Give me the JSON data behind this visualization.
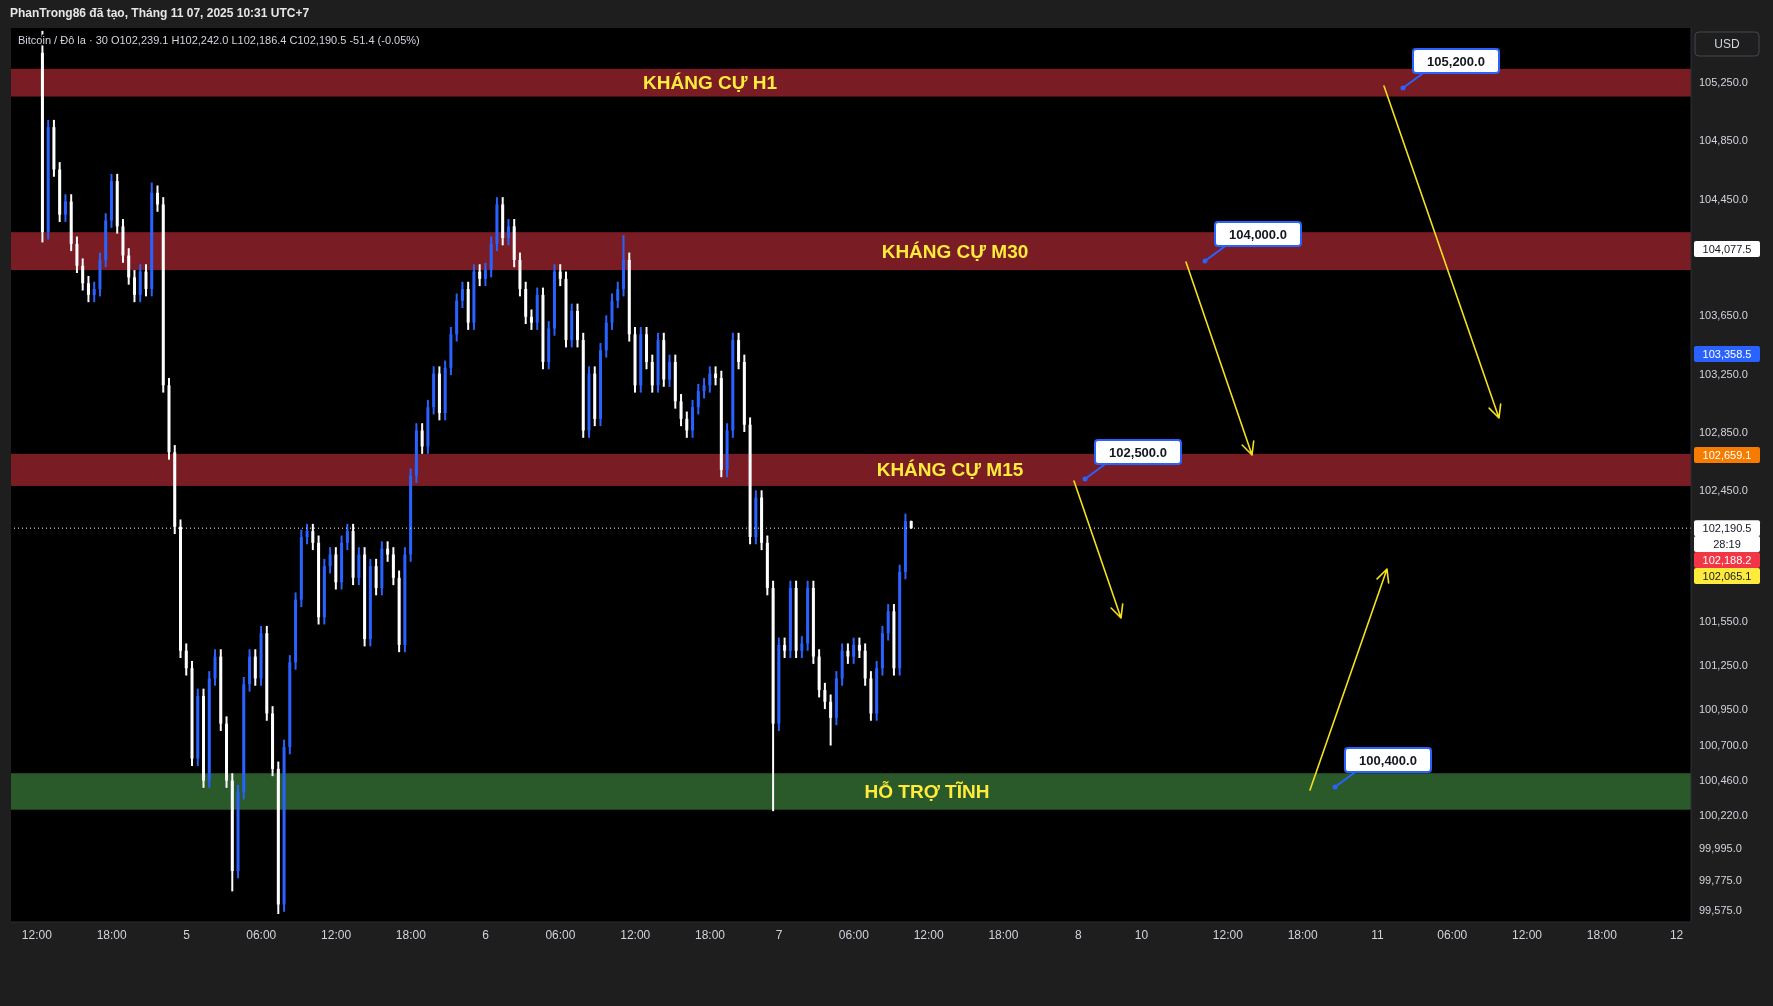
{
  "chart_data": {
    "type": "candlestick",
    "title": "PhanTrong86 đã tạo, Tháng 11 07, 2025 10:31 UTC+7",
    "subtitle": "Bitcoin / Đô la · 30   O102,239.1  H102,242.0  L102,186.4  C102,190.5  -51.4 (-0.05%)",
    "categories": [
      null,
      null,
      null,
      null,
      "12:00",
      null,
      null,
      null,
      null,
      null,
      null,
      null,
      null,
      null,
      null,
      null,
      null,
      "18:00",
      null,
      null,
      null,
      null,
      null,
      null,
      null,
      null,
      null,
      null,
      null,
      null,
      "5",
      null,
      null,
      null,
      null,
      null,
      null,
      null,
      null,
      null,
      null,
      null,
      null,
      "06:00",
      null,
      null,
      null,
      null,
      null,
      null,
      null,
      null,
      null,
      null,
      null,
      null,
      "12:00",
      null,
      null,
      null,
      null,
      null,
      null,
      null,
      null,
      null,
      null,
      null,
      null,
      "18:00",
      null,
      null,
      null,
      null,
      null,
      null,
      null,
      null,
      null,
      null,
      null,
      null,
      "6",
      null,
      null,
      null,
      null,
      null,
      null,
      null,
      null,
      null,
      null,
      null,
      null,
      "06:00",
      null,
      null,
      null,
      null,
      null,
      null,
      null,
      null,
      null,
      null,
      null,
      null,
      "12:00",
      null,
      null,
      null,
      null,
      null,
      null,
      null,
      null,
      null,
      null,
      null,
      null,
      "18:00",
      null,
      null,
      null,
      null,
      null,
      null,
      null,
      null,
      null,
      null,
      null,
      "7",
      null,
      null,
      null,
      null,
      null,
      null,
      null,
      null,
      null,
      null,
      null,
      null,
      "06:00",
      null,
      null,
      null,
      null,
      null,
      null,
      null,
      null,
      null,
      null,
      null,
      null,
      "12:00",
      null,
      null,
      null,
      null,
      null,
      null,
      null,
      null,
      null,
      null,
      null,
      null,
      "18:00",
      null,
      null,
      null,
      null,
      null,
      null,
      null,
      null,
      null,
      null,
      null,
      null,
      "8",
      null,
      null,
      null,
      null,
      null,
      null,
      null,
      null,
      null,
      null,
      "10",
      null,
      null,
      null,
      null,
      null,
      null,
      null,
      null,
      null,
      null,
      null,
      null,
      null,
      null,
      "12:00",
      null,
      null,
      null,
      null,
      null,
      null,
      null,
      null,
      null,
      null,
      null,
      null,
      "18:00",
      null,
      null,
      null,
      null,
      null,
      null,
      null,
      null,
      null,
      null,
      null,
      null,
      "11",
      null,
      null,
      null,
      null,
      null,
      null,
      null,
      null,
      null,
      null,
      null,
      null,
      "06:00",
      null,
      null,
      null,
      null,
      null,
      null,
      null,
      null,
      null,
      null,
      null,
      null,
      "12:00",
      null,
      null,
      null,
      null,
      null,
      null,
      null,
      null,
      null,
      null,
      null,
      null,
      "18:00",
      null,
      null,
      null,
      null,
      null,
      null,
      null,
      null,
      null,
      null,
      null,
      null,
      "12",
      null,
      null
    ],
    "ohlc": [
      null,
      null,
      null,
      null,
      null,
      [
        105450,
        105600,
        104150,
        104220
      ],
      [
        104220,
        104990,
        104170,
        104940
      ],
      [
        104940,
        104990,
        104600,
        104650
      ],
      [
        104650,
        104700,
        104290,
        104340
      ],
      [
        104340,
        104480,
        104290,
        104430
      ],
      [
        104430,
        104480,
        104090,
        104140
      ],
      [
        104140,
        104190,
        103940,
        103990
      ],
      [
        103990,
        104040,
        103820,
        103870
      ],
      [
        103870,
        103920,
        103740,
        103790
      ],
      [
        103790,
        103880,
        103740,
        103830
      ],
      [
        103830,
        104080,
        103780,
        104030
      ],
      [
        104030,
        104350,
        103980,
        104300
      ],
      [
        104300,
        104620,
        104250,
        104570
      ],
      [
        104570,
        104620,
        104210,
        104260
      ],
      [
        104260,
        104310,
        104010,
        104060
      ],
      [
        104060,
        104110,
        103860,
        103910
      ],
      [
        103910,
        103960,
        103740,
        103790
      ],
      [
        103790,
        104000,
        103740,
        103950
      ],
      [
        103950,
        104000,
        103780,
        103830
      ],
      [
        103830,
        104560,
        103780,
        104490
      ],
      [
        104490,
        104540,
        104360,
        104410
      ],
      [
        104410,
        104460,
        103120,
        103170
      ],
      [
        103170,
        103220,
        102660,
        102710
      ],
      [
        102710,
        102760,
        102150,
        102200
      ],
      [
        102200,
        102250,
        101300,
        101350
      ],
      [
        101350,
        101400,
        101180,
        101230
      ],
      [
        101230,
        101280,
        100560,
        100610
      ],
      [
        100610,
        101090,
        100560,
        101040
      ],
      [
        101040,
        101090,
        100410,
        100460
      ],
      [
        100460,
        101210,
        100410,
        101160
      ],
      [
        101160,
        101360,
        101110,
        101310
      ],
      [
        101310,
        101360,
        100800,
        100850
      ],
      [
        100850,
        100900,
        100410,
        100460
      ],
      [
        100460,
        100510,
        99700,
        99840
      ],
      [
        99840,
        100430,
        99790,
        100380
      ],
      [
        100380,
        101170,
        100330,
        101120
      ],
      [
        101120,
        101360,
        101070,
        101310
      ],
      [
        101310,
        101360,
        101110,
        101160
      ],
      [
        101160,
        101520,
        101110,
        101470
      ],
      [
        101470,
        101520,
        100870,
        100920
      ],
      [
        100920,
        100970,
        100490,
        100540
      ],
      [
        100540,
        100590,
        99545,
        99610
      ],
      [
        99610,
        100740,
        99560,
        100690
      ],
      [
        100690,
        101320,
        100640,
        101270
      ],
      [
        101270,
        101750,
        101220,
        101700
      ],
      [
        101700,
        102180,
        101650,
        102130
      ],
      [
        102130,
        102220,
        102080,
        102170
      ],
      [
        102170,
        102220,
        102040,
        102090
      ],
      [
        102090,
        102140,
        101530,
        101580
      ],
      [
        101580,
        101980,
        101530,
        101930
      ],
      [
        101930,
        102060,
        101880,
        102010
      ],
      [
        102010,
        102060,
        101770,
        101820
      ],
      [
        101820,
        102140,
        101770,
        102090
      ],
      [
        102090,
        102220,
        102040,
        102170
      ],
      [
        102170,
        102220,
        101800,
        101850
      ],
      [
        101850,
        102060,
        101800,
        102010
      ],
      [
        102010,
        102060,
        101380,
        101430
      ],
      [
        101430,
        101980,
        101380,
        101930
      ],
      [
        101930,
        101980,
        101730,
        101780
      ],
      [
        101780,
        102100,
        101730,
        102050
      ],
      [
        102050,
        102100,
        101960,
        102010
      ],
      [
        102010,
        102060,
        101800,
        101850
      ],
      [
        101850,
        101900,
        101340,
        101390
      ],
      [
        101390,
        102060,
        101340,
        102010
      ],
      [
        102010,
        102600,
        101960,
        102550
      ],
      [
        102550,
        102910,
        102500,
        102860
      ],
      [
        102860,
        102910,
        102700,
        102750
      ],
      [
        102750,
        103070,
        102700,
        103020
      ],
      [
        103020,
        103300,
        102970,
        103250
      ],
      [
        103250,
        103300,
        102930,
        102980
      ],
      [
        102980,
        103340,
        102930,
        103290
      ],
      [
        103290,
        103570,
        103240,
        103520
      ],
      [
        103520,
        103800,
        103470,
        103750
      ],
      [
        103750,
        103880,
        103700,
        103830
      ],
      [
        103830,
        103880,
        103550,
        103600
      ],
      [
        103600,
        104000,
        103550,
        103950
      ],
      [
        103950,
        104000,
        103850,
        103900
      ],
      [
        103900,
        104010,
        103850,
        103960
      ],
      [
        103960,
        104190,
        103910,
        104140
      ],
      [
        104140,
        104460,
        104090,
        104410
      ],
      [
        104410,
        104460,
        104130,
        104180
      ],
      [
        104180,
        104310,
        104130,
        104260
      ],
      [
        104260,
        104310,
        103980,
        104030
      ],
      [
        104030,
        104080,
        103780,
        103830
      ],
      [
        103830,
        103880,
        103590,
        103640
      ],
      [
        103640,
        103690,
        103550,
        103600
      ],
      [
        103600,
        103840,
        103550,
        103790
      ],
      [
        103790,
        103840,
        103280,
        103330
      ],
      [
        103330,
        103610,
        103280,
        103560
      ],
      [
        103560,
        104000,
        103510,
        103950
      ],
      [
        103950,
        104000,
        103850,
        103900
      ],
      [
        103900,
        103950,
        103430,
        103480
      ],
      [
        103480,
        103730,
        103430,
        103680
      ],
      [
        103680,
        103730,
        103430,
        103480
      ],
      [
        103480,
        103530,
        102810,
        102860
      ],
      [
        102860,
        103300,
        102810,
        103250
      ],
      [
        103250,
        103300,
        102890,
        102940
      ],
      [
        102940,
        103460,
        102890,
        103410
      ],
      [
        103410,
        103650,
        103360,
        103600
      ],
      [
        103600,
        103800,
        103550,
        103750
      ],
      [
        103750,
        103880,
        103700,
        103830
      ],
      [
        103830,
        104200,
        103780,
        104030
      ],
      [
        104030,
        104080,
        103470,
        103520
      ],
      [
        103520,
        103570,
        103120,
        103170
      ],
      [
        103170,
        103570,
        103120,
        103520
      ],
      [
        103520,
        103570,
        103280,
        103330
      ],
      [
        103330,
        103380,
        103120,
        103170
      ],
      [
        103170,
        103530,
        103120,
        103480
      ],
      [
        103480,
        103530,
        103160,
        103210
      ],
      [
        103210,
        103380,
        103160,
        103330
      ],
      [
        103330,
        103380,
        103010,
        103060
      ],
      [
        103060,
        103110,
        102890,
        102940
      ],
      [
        102940,
        102990,
        102810,
        102860
      ],
      [
        102860,
        103070,
        102810,
        103020
      ],
      [
        103020,
        103180,
        102970,
        103130
      ],
      [
        103130,
        103220,
        103080,
        103170
      ],
      [
        103170,
        103300,
        103120,
        103250
      ],
      [
        103250,
        103300,
        103170,
        103220
      ],
      [
        103220,
        103270,
        102540,
        102590
      ],
      [
        102590,
        102910,
        102540,
        102860
      ],
      [
        102860,
        103530,
        102810,
        103480
      ],
      [
        103480,
        103530,
        103280,
        103330
      ],
      [
        103330,
        103380,
        102850,
        102900
      ],
      [
        102900,
        102950,
        102080,
        102130
      ],
      [
        102130,
        102450,
        102080,
        102400
      ],
      [
        102400,
        102450,
        102040,
        102090
      ],
      [
        102090,
        102140,
        101730,
        101780
      ],
      [
        101780,
        101830,
        100250,
        100850
      ],
      [
        100850,
        101440,
        100800,
        101390
      ],
      [
        101390,
        101440,
        101300,
        101350
      ],
      [
        101350,
        101830,
        101300,
        101780
      ],
      [
        101780,
        101830,
        101300,
        101350
      ],
      [
        101350,
        101450,
        101300,
        101400
      ],
      [
        101400,
        101830,
        101350,
        101780
      ],
      [
        101780,
        101830,
        101260,
        101310
      ],
      [
        101310,
        101360,
        101030,
        101080
      ],
      [
        101080,
        101130,
        100950,
        101000
      ],
      [
        101000,
        101050,
        100700,
        100890
      ],
      [
        100890,
        101210,
        100840,
        101160
      ],
      [
        101160,
        101400,
        101110,
        101350
      ],
      [
        101350,
        101400,
        101260,
        101310
      ],
      [
        101310,
        101440,
        101260,
        101390
      ],
      [
        101390,
        101440,
        101300,
        101350
      ],
      [
        101350,
        101400,
        101110,
        101160
      ],
      [
        101160,
        101210,
        100870,
        100920
      ],
      [
        100920,
        101280,
        100870,
        101230
      ],
      [
        101230,
        101520,
        101180,
        101470
      ],
      [
        101470,
        101670,
        101420,
        101620
      ],
      [
        101620,
        101670,
        101180,
        101230
      ],
      [
        101230,
        101940,
        101180,
        101890
      ],
      [
        101890,
        102290,
        101840,
        102239.1
      ],
      [
        102239.1,
        102242.0,
        102186.4,
        102190.5
      ],
      null,
      null,
      null,
      null,
      null,
      null,
      null,
      null,
      null,
      null,
      null,
      null,
      null,
      null,
      null,
      null,
      null,
      null,
      null,
      null,
      null,
      null,
      null,
      null,
      null,
      null,
      null,
      null,
      null,
      null,
      null,
      null,
      null,
      null,
      null,
      null,
      null,
      null,
      null,
      null,
      null,
      null,
      null,
      null,
      null,
      null,
      null,
      null,
      null,
      null,
      null,
      null,
      null,
      null,
      null,
      null,
      null,
      null,
      null,
      null,
      null,
      null,
      null,
      null,
      null,
      null,
      null,
      null,
      null,
      null,
      null,
      null,
      null,
      null,
      null,
      null,
      null,
      null,
      null,
      null,
      null,
      null,
      null,
      null,
      null,
      null,
      null,
      null,
      null,
      null,
      null,
      null,
      null,
      null,
      null,
      null,
      null,
      null,
      null,
      null,
      null,
      null,
      null,
      null,
      null,
      null,
      null,
      null,
      null,
      null,
      null,
      null,
      null,
      null,
      null,
      null,
      null,
      null,
      null,
      null,
      null,
      null,
      null,
      null,
      null,
      null,
      null,
      null,
      null,
      null,
      null,
      null,
      null,
      null,
      null
    ],
    "colors": [
      null,
      null,
      null,
      null,
      null,
      "#ffffff",
      "#2962ff",
      "#ffffff",
      "#ffffff",
      "#2962ff",
      "#ffffff",
      "#ffffff",
      "#ffffff",
      "#ffffff",
      "#2962ff",
      "#2962ff",
      "#2962ff",
      "#2962ff",
      "#ffffff",
      "#ffffff",
      "#ffffff",
      "#ffffff",
      "#2962ff",
      "#ffffff",
      "#2962ff",
      "#ffffff",
      "#ffffff",
      "#ffffff",
      "#ffffff",
      "#ffffff",
      "#ffffff",
      "#ffffff",
      "#2962ff",
      "#ffffff",
      "#2962ff",
      "#2962ff",
      "#ffffff",
      "#ffffff",
      "#ffffff",
      "#2962ff",
      "#2962ff",
      "#2962ff",
      "#ffffff",
      "#2962ff",
      "#ffffff",
      "#ffffff",
      "#ffffff",
      "#2962ff",
      "#2962ff",
      "#2962ff",
      "#2962ff",
      "#2962ff",
      "#ffffff",
      "#ffffff",
      "#2962ff",
      "#2962ff",
      "#ffffff",
      "#2962ff",
      "#2962ff",
      "#ffffff",
      "#2962ff",
      "#ffffff",
      "#2962ff",
      "#ffffff",
      "#2962ff",
      "#ffffff",
      "#ffffff",
      "#ffffff",
      "#2962ff",
      "#2962ff",
      "#2962ff",
      "#ffffff",
      "#2962ff",
      "#2962ff",
      "#ffffff",
      "#2962ff",
      "#2962ff",
      "#2962ff",
      "#2962ff",
      "#ffffff",
      "#2962ff",
      "#ffffff",
      "#2962ff",
      "#2962ff",
      "#2962ff",
      "#ffffff",
      "#2962ff",
      "#ffffff",
      "#ffffff",
      "#ffffff",
      "#ffffff",
      "#2962ff",
      "#ffffff",
      "#2962ff",
      "#2962ff",
      "#ffffff",
      "#ffffff",
      "#2962ff",
      "#ffffff",
      "#ffffff",
      "#2962ff",
      "#ffffff",
      "#2962ff",
      "#2962ff",
      "#2962ff",
      "#2962ff",
      "#2962ff",
      "#ffffff",
      "#ffffff",
      "#2962ff",
      "#ffffff",
      "#ffffff",
      "#2962ff",
      "#ffffff",
      "#2962ff",
      "#ffffff",
      "#ffffff",
      "#ffffff",
      "#2962ff",
      "#2962ff",
      "#2962ff",
      "#2962ff",
      "#ffffff",
      "#ffffff",
      "#2962ff",
      "#2962ff",
      "#ffffff",
      "#ffffff",
      "#ffffff",
      "#2962ff",
      "#ffffff",
      "#ffffff",
      "#ffffff",
      "#2962ff",
      "#ffffff",
      "#2962ff",
      "#ffffff",
      "#2962ff",
      "#2962ff",
      "#ffffff",
      "#ffffff",
      "#ffffff",
      "#ffffff",
      "#2962ff",
      "#2962ff",
      "#ffffff",
      "#2962ff",
      "#ffffff",
      "#ffffff",
      "#ffffff",
      "#2962ff",
      "#2962ff",
      "#2962ff",
      "#ffffff",
      "#2962ff",
      "#2962ff",
      "#ffffff",
      null,
      null,
      null,
      null,
      null,
      null,
      null,
      null,
      null,
      null,
      null,
      null,
      null,
      null,
      null,
      null,
      null,
      null,
      null,
      null,
      null,
      null,
      null,
      null,
      null,
      null,
      null,
      null,
      null,
      null,
      null,
      null,
      null,
      null,
      null,
      null,
      null,
      null,
      null,
      null,
      null,
      null,
      null,
      null,
      null,
      null,
      null,
      null,
      null,
      null,
      null,
      null,
      null,
      null,
      null,
      null,
      null,
      null,
      null,
      null,
      null,
      null,
      null,
      null,
      null,
      null,
      null,
      null,
      null,
      null,
      null,
      null,
      null,
      null,
      null,
      null,
      null,
      null,
      null,
      null,
      null,
      null,
      null,
      null,
      null,
      null,
      null,
      null,
      null,
      null,
      null,
      null,
      null,
      null,
      null,
      null,
      null,
      null,
      null,
      null,
      null,
      null,
      null,
      null,
      null,
      null,
      null,
      null,
      null,
      null,
      null,
      null,
      null,
      null,
      null,
      null,
      null,
      null,
      null,
      null,
      null,
      null,
      null,
      null,
      null,
      null,
      null,
      null,
      null,
      null,
      null,
      null,
      null,
      null,
      null
    ],
    "ylim": [
      99490,
      105620
    ],
    "yticks": [
      {
        "value": 105250,
        "label": "105,250.0"
      },
      {
        "value": 104850,
        "label": "104,850.0"
      },
      {
        "value": 104450,
        "label": "104,450.0"
      },
      {
        "value": 103650,
        "label": "103,650.0"
      },
      {
        "value": 103250,
        "label": "103,250.0"
      },
      {
        "value": 102850,
        "label": "102,850.0"
      },
      {
        "value": 102450,
        "label": "102,450.0"
      },
      {
        "value": 101550,
        "label": "101,550.0"
      },
      {
        "value": 101250,
        "label": "101,250.0"
      },
      {
        "value": 100950,
        "label": "100,950.0"
      },
      {
        "value": 100700,
        "label": "100,700.0"
      },
      {
        "value": 100460,
        "label": "100,460.0"
      },
      {
        "value": 100220,
        "label": "100,220.0"
      },
      {
        "value": 99995,
        "label": "99,995.0"
      },
      {
        "value": 99775,
        "label": "99,775.0"
      },
      {
        "value": 99575,
        "label": "99,575.0"
      }
    ],
    "bands": [
      {
        "axis": "y",
        "from": 105150,
        "to": 105340,
        "label": "KHÁNG CỰ H1",
        "color": "#7a1c24"
      },
      {
        "axis": "y",
        "from": 103960,
        "to": 104220,
        "label": "KHÁNG CỰ M30",
        "color": "#7a1c24"
      },
      {
        "axis": "y",
        "from": 102480,
        "to": 102700,
        "label": "KHÁNG CỰ M15",
        "color": "#7a1c24"
      },
      {
        "axis": "y",
        "from": 100260,
        "to": 100510,
        "label": "HỖ TRỢ TĨNH",
        "color": "#2a5a2a"
      }
    ],
    "ref_lines": [
      {
        "axis": "y",
        "value": 102190.5,
        "label": "102,190.5",
        "color": "#ffffff",
        "line_style": "dotted"
      }
    ],
    "annotations": [
      "USD",
      "105,200.0",
      "104,000.0",
      "102,500.0",
      "100,400.0",
      "104,077.5",
      "103,358.5",
      "102,659.1",
      "28:19",
      "102,188.2",
      "102,065.1"
    ]
  }
}
